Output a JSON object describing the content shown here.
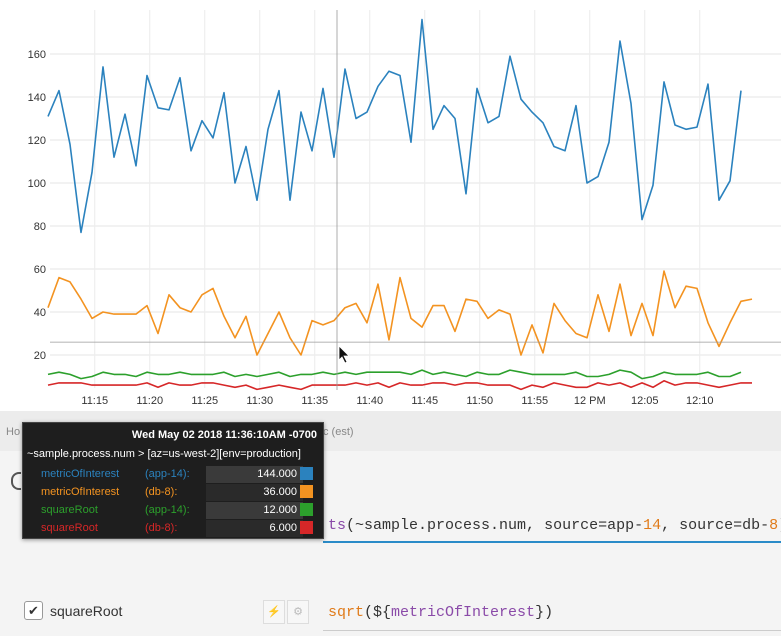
{
  "colors": {
    "metricOfInterest_app14": "#2b82be",
    "metricOfInterest_db8": "#f39321",
    "squareRoot_app14": "#2ca02c",
    "squareRoot_db8": "#d62728"
  },
  "chart_data": {
    "type": "line",
    "ylim": [
      5,
      178
    ],
    "y_ticks": [
      "20",
      "40",
      "60",
      "80",
      "100",
      "120",
      "140",
      "160"
    ],
    "x_ticks": [
      "11:15",
      "11:20",
      "11:25",
      "11:30",
      "11:35",
      "11:40",
      "11:45",
      "11:50",
      "11:55",
      "12 PM",
      "12:05",
      "12:10"
    ],
    "x_start_time": "11:10:45",
    "x_step_minutes": 1,
    "hover_time": "11:36",
    "grid": true,
    "series": [
      {
        "name": "metricOfInterest (app-14)",
        "color": "#2b82be",
        "values": [
          131,
          143,
          118,
          77,
          105,
          154,
          112,
          132,
          108,
          150,
          135,
          134,
          149,
          115,
          129,
          121,
          142,
          100,
          117,
          92,
          125,
          143,
          92,
          133,
          115,
          144,
          112,
          153,
          130,
          133,
          145,
          152,
          150,
          119,
          176,
          125,
          136,
          130,
          95,
          144,
          128,
          131,
          159,
          139,
          133,
          128,
          117,
          115,
          136,
          100,
          103,
          119,
          166,
          137,
          83,
          99,
          147,
          127,
          125,
          126,
          146,
          92,
          101,
          143
        ]
      },
      {
        "name": "metricOfInterest (db-8)",
        "color": "#f39321",
        "values": [
          42,
          56,
          54,
          46,
          37,
          40,
          39,
          39,
          39,
          43,
          30,
          48,
          42,
          40,
          48,
          51,
          38,
          28,
          38,
          20,
          30,
          40,
          28,
          20,
          36,
          34,
          36,
          42,
          44,
          35,
          53,
          27,
          56,
          37,
          33,
          43,
          43,
          31,
          46,
          45,
          37,
          41,
          39,
          20,
          34,
          21,
          44,
          36,
          30,
          28,
          48,
          31,
          53,
          29,
          44,
          29,
          59,
          42,
          52,
          51,
          35,
          24,
          35,
          45,
          46
        ]
      },
      {
        "name": "squareRoot (app-14)",
        "color": "#2ca02c",
        "values": [
          11,
          12,
          11,
          9,
          10,
          12,
          11,
          11,
          10,
          12,
          11,
          11,
          12,
          11,
          11,
          11,
          12,
          10,
          11,
          10,
          11,
          12,
          10,
          11,
          11,
          12,
          11,
          12,
          11,
          12,
          12,
          12,
          12,
          11,
          13,
          11,
          12,
          11,
          10,
          12,
          11,
          11,
          13,
          12,
          11,
          11,
          11,
          11,
          12,
          10,
          10,
          11,
          13,
          12,
          9,
          10,
          12,
          11,
          11,
          11,
          12,
          10,
          10,
          12
        ]
      },
      {
        "name": "squareRoot (db-8)",
        "color": "#d62728",
        "values": [
          6,
          7,
          7,
          7,
          6,
          6,
          6,
          6,
          6,
          7,
          5,
          7,
          6,
          6,
          7,
          7,
          6,
          5,
          6,
          4,
          5,
          6,
          5,
          4,
          6,
          6,
          6,
          6,
          7,
          6,
          7,
          5,
          7,
          6,
          6,
          7,
          7,
          6,
          7,
          7,
          6,
          6,
          6,
          4,
          6,
          5,
          7,
          6,
          5,
          5,
          7,
          6,
          7,
          5,
          7,
          5,
          8,
          6,
          7,
          7,
          6,
          5,
          6,
          7,
          7
        ]
      }
    ]
  },
  "tooltip": {
    "date": "Wed May 02 2018 11:36:10AM -0700",
    "query": "~sample.process.num > [az=us-west-2][env=production]",
    "rows": [
      {
        "name": "metricOfInterest",
        "source": "(app-14):",
        "value": "144.000",
        "color": "#2b82be"
      },
      {
        "name": "metricOfInterest",
        "source": "(db-8):",
        "value": "36.000",
        "color": "#f39321"
      },
      {
        "name": "squareRoot",
        "source": "(app-14):",
        "value": "12.000",
        "color": "#2ca02c"
      },
      {
        "name": "squareRoot",
        "source": "(db-8):",
        "value": "6.000",
        "color": "#d62728"
      }
    ]
  },
  "hidden_fragments": {
    "left": "Ho",
    "right": "c (est)"
  },
  "query1": {
    "func": "ts",
    "open": "(",
    "metric": "~sample.process.num, ",
    "k1": "source=app-",
    "v1": "14",
    "sep": ", ",
    "k2": "source=db-",
    "v2": "8",
    "close": ")"
  },
  "row2": {
    "checked": "✔",
    "label": "squareRoot",
    "query_func": "sqrt",
    "query_open": "(${",
    "query_var": "metricOfInterest",
    "query_close": "})",
    "bolt_icon": "⚡",
    "gear_icon": "⚙"
  }
}
